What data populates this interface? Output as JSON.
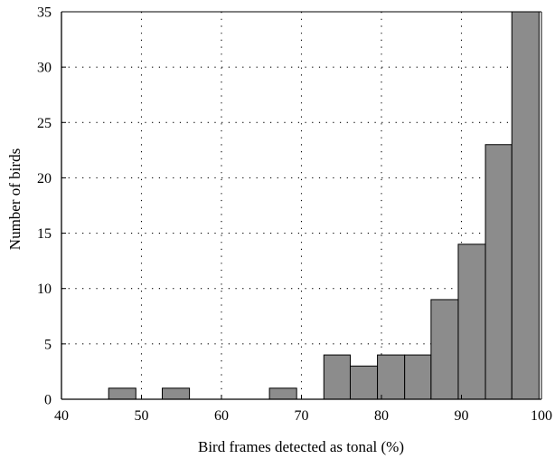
{
  "chart_data": {
    "type": "bar",
    "title": "",
    "xlabel": "Bird frames detected as tonal (%)",
    "ylabel": "Number of birds",
    "xlim": [
      40,
      100
    ],
    "ylim": [
      0,
      35
    ],
    "grid": true,
    "grid_style": "dotted",
    "bar_color": "#8c8c8c",
    "bar_edge_color": "#000000",
    "x_ticks": [
      40,
      50,
      60,
      70,
      80,
      90,
      100
    ],
    "y_ticks": [
      0,
      5,
      10,
      15,
      20,
      25,
      30,
      35
    ],
    "bins": [
      {
        "x0": 45.9,
        "x1": 49.3,
        "value": 1
      },
      {
        "x0": 52.6,
        "x1": 56.0,
        "value": 1
      },
      {
        "x0": 66.0,
        "x1": 69.4,
        "value": 1
      },
      {
        "x0": 72.8,
        "x1": 76.1,
        "value": 4
      },
      {
        "x0": 76.1,
        "x1": 79.5,
        "value": 3
      },
      {
        "x0": 79.5,
        "x1": 82.9,
        "value": 4
      },
      {
        "x0": 82.9,
        "x1": 86.2,
        "value": 4
      },
      {
        "x0": 86.2,
        "x1": 89.6,
        "value": 9
      },
      {
        "x0": 89.6,
        "x1": 93.0,
        "value": 14
      },
      {
        "x0": 93.0,
        "x1": 96.3,
        "value": 23
      },
      {
        "x0": 96.3,
        "x1": 99.7,
        "value": 35
      }
    ]
  }
}
